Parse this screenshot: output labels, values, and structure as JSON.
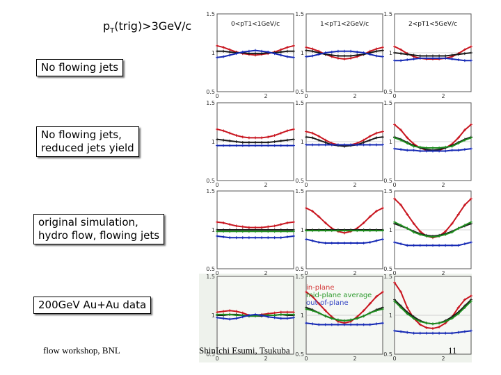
{
  "header": {
    "title_main": "p",
    "title_sub": "T",
    "title_rest": "(trig)>3GeV/c"
  },
  "colors": {
    "red": "#c8141e",
    "black": "#1a1a1a",
    "green": "#1e8c1e",
    "blue": "#1428b4"
  },
  "row_labels": [
    {
      "line1": "No flowing jets",
      "line2": ""
    },
    {
      "line1": "No flowing jets,",
      "line2": "reduced jets yield"
    },
    {
      "line1": "original simulation,",
      "line2": "hydro flow, flowing jets"
    },
    {
      "line1": "200GeV Au+Au data",
      "line2": ""
    }
  ],
  "legend": {
    "in_plane": "in-plane",
    "mid_plane": "mid-plane average",
    "out_plane": "out-of-plane"
  },
  "footer": {
    "left": "flow workshop, BNL",
    "center": "ShinIchi Esumi, Tsukuba",
    "page": "11"
  },
  "chart_data": {
    "type": "line",
    "columns": [
      "0<pT1<1GeV/c",
      "1<pT1<2GeV/c",
      "2<pT1<5GeV/c"
    ],
    "y_ticks": [
      "1.5",
      "1",
      "0.5"
    ],
    "x_ticks": [
      "0",
      "2"
    ],
    "xlim": [
      0,
      3.14
    ],
    "ylim": [
      0.5,
      1.5
    ],
    "x": [
      0,
      0.26,
      0.52,
      0.79,
      1.05,
      1.31,
      1.57,
      1.83,
      2.09,
      2.36,
      2.62,
      2.88,
      3.14
    ],
    "panels": [
      {
        "row": 0,
        "col": 0,
        "series": [
          {
            "color": "red",
            "values": [
              1.09,
              1.07,
              1.04,
              1.01,
              0.99,
              0.98,
              0.97,
              0.98,
              0.99,
              1.01,
              1.04,
              1.07,
              1.09
            ]
          },
          {
            "color": "black",
            "values": [
              1.02,
              1.02,
              1.01,
              1.0,
              1.0,
              0.99,
              0.99,
              0.99,
              1.0,
              1.0,
              1.01,
              1.02,
              1.02
            ]
          },
          {
            "color": "blue",
            "values": [
              0.94,
              0.95,
              0.97,
              0.99,
              1.01,
              1.02,
              1.03,
              1.02,
              1.01,
              0.99,
              0.97,
              0.95,
              0.94
            ]
          }
        ]
      },
      {
        "row": 0,
        "col": 1,
        "series": [
          {
            "color": "red",
            "values": [
              1.07,
              1.05,
              1.02,
              0.98,
              0.95,
              0.93,
              0.92,
              0.93,
              0.95,
              0.98,
              1.02,
              1.05,
              1.07
            ]
          },
          {
            "color": "black",
            "values": [
              1.03,
              1.02,
              1.0,
              0.98,
              0.97,
              0.96,
              0.96,
              0.96,
              0.97,
              0.98,
              1.0,
              1.02,
              1.03
            ]
          },
          {
            "color": "blue",
            "values": [
              0.95,
              0.96,
              0.98,
              1.0,
              1.01,
              1.02,
              1.02,
              1.02,
              1.01,
              1.0,
              0.98,
              0.96,
              0.95
            ]
          }
        ]
      },
      {
        "row": 0,
        "col": 2,
        "series": [
          {
            "color": "red",
            "values": [
              1.08,
              1.04,
              0.99,
              0.95,
              0.93,
              0.92,
              0.92,
              0.92,
              0.93,
              0.95,
              0.99,
              1.04,
              1.08
            ]
          },
          {
            "color": "black",
            "values": [
              1.0,
              0.99,
              0.98,
              0.97,
              0.96,
              0.96,
              0.96,
              0.96,
              0.96,
              0.97,
              0.98,
              0.99,
              1.0
            ]
          },
          {
            "color": "blue",
            "values": [
              0.9,
              0.9,
              0.91,
              0.92,
              0.93,
              0.93,
              0.93,
              0.93,
              0.93,
              0.92,
              0.91,
              0.9,
              0.9
            ]
          }
        ]
      },
      {
        "row": 1,
        "col": 0,
        "series": [
          {
            "color": "red",
            "values": [
              1.16,
              1.14,
              1.11,
              1.08,
              1.06,
              1.05,
              1.05,
              1.05,
              1.06,
              1.08,
              1.11,
              1.14,
              1.16
            ]
          },
          {
            "color": "black",
            "values": [
              1.03,
              1.02,
              1.01,
              1.0,
              0.99,
              0.99,
              0.99,
              0.99,
              0.99,
              1.0,
              1.01,
              1.02,
              1.03
            ]
          },
          {
            "color": "blue",
            "values": [
              0.95,
              0.95,
              0.95,
              0.95,
              0.95,
              0.95,
              0.95,
              0.95,
              0.95,
              0.95,
              0.95,
              0.95,
              0.95
            ]
          }
        ]
      },
      {
        "row": 1,
        "col": 1,
        "series": [
          {
            "color": "red",
            "values": [
              1.13,
              1.11,
              1.07,
              1.02,
              0.98,
              0.96,
              0.95,
              0.96,
              0.98,
              1.02,
              1.07,
              1.11,
              1.13
            ]
          },
          {
            "color": "black",
            "values": [
              1.06,
              1.05,
              1.02,
              0.99,
              0.96,
              0.95,
              0.94,
              0.95,
              0.96,
              0.99,
              1.02,
              1.05,
              1.06
            ]
          },
          {
            "color": "blue",
            "values": [
              0.96,
              0.96,
              0.96,
              0.96,
              0.96,
              0.96,
              0.96,
              0.96,
              0.96,
              0.96,
              0.96,
              0.96,
              0.96
            ]
          }
        ]
      },
      {
        "row": 1,
        "col": 2,
        "series": [
          {
            "color": "red",
            "values": [
              1.22,
              1.15,
              1.05,
              0.97,
              0.92,
              0.89,
              0.88,
              0.89,
              0.92,
              0.97,
              1.05,
              1.15,
              1.22
            ]
          },
          {
            "color": "black",
            "values": [
              1.06,
              1.03,
              0.99,
              0.95,
              0.92,
              0.9,
              0.89,
              0.9,
              0.92,
              0.95,
              0.99,
              1.03,
              1.06
            ]
          },
          {
            "color": "green",
            "values": [
              1.05,
              1.02,
              0.98,
              0.94,
              0.93,
              0.92,
              0.92,
              0.92,
              0.93,
              0.94,
              0.98,
              1.02,
              1.05
            ]
          },
          {
            "color": "blue",
            "values": [
              0.91,
              0.9,
              0.89,
              0.89,
              0.88,
              0.88,
              0.88,
              0.88,
              0.88,
              0.89,
              0.89,
              0.9,
              0.91
            ]
          }
        ]
      },
      {
        "row": 2,
        "col": 0,
        "series": [
          {
            "color": "red",
            "values": [
              1.1,
              1.09,
              1.07,
              1.05,
              1.04,
              1.03,
              1.03,
              1.03,
              1.04,
              1.05,
              1.07,
              1.09,
              1.1
            ]
          },
          {
            "color": "black",
            "values": [
              1.0,
              1.0,
              1.0,
              1.0,
              1.0,
              1.0,
              1.0,
              1.0,
              1.0,
              1.0,
              1.0,
              1.0,
              1.0
            ]
          },
          {
            "color": "green",
            "values": [
              0.98,
              0.98,
              0.98,
              0.98,
              0.98,
              0.98,
              0.98,
              0.98,
              0.98,
              0.98,
              0.98,
              0.98,
              0.98
            ]
          },
          {
            "color": "blue",
            "values": [
              0.92,
              0.91,
              0.9,
              0.9,
              0.9,
              0.9,
              0.9,
              0.9,
              0.9,
              0.9,
              0.9,
              0.91,
              0.92
            ]
          }
        ]
      },
      {
        "row": 2,
        "col": 1,
        "series": [
          {
            "color": "red",
            "values": [
              1.28,
              1.24,
              1.17,
              1.09,
              1.02,
              0.98,
              0.96,
              0.98,
              1.02,
              1.09,
              1.17,
              1.24,
              1.28
            ]
          },
          {
            "color": "black",
            "values": [
              1.0,
              1.0,
              1.0,
              1.0,
              1.0,
              1.0,
              1.0,
              1.0,
              1.0,
              1.0,
              1.0,
              1.0,
              1.0
            ]
          },
          {
            "color": "green",
            "values": [
              0.99,
              0.99,
              0.99,
              0.99,
              0.99,
              0.99,
              0.99,
              0.99,
              0.99,
              0.99,
              0.99,
              0.99,
              0.99
            ]
          },
          {
            "color": "blue",
            "values": [
              0.88,
              0.86,
              0.84,
              0.83,
              0.83,
              0.83,
              0.83,
              0.83,
              0.83,
              0.83,
              0.84,
              0.86,
              0.88
            ]
          }
        ]
      },
      {
        "row": 2,
        "col": 2,
        "series": [
          {
            "color": "red",
            "values": [
              1.4,
              1.32,
              1.2,
              1.08,
              0.98,
              0.92,
              0.9,
              0.92,
              0.98,
              1.08,
              1.2,
              1.32,
              1.4
            ]
          },
          {
            "color": "black",
            "values": [
              1.08,
              1.05,
              1.02,
              0.98,
              0.95,
              0.93,
              0.92,
              0.93,
              0.95,
              0.98,
              1.02,
              1.05,
              1.08
            ]
          },
          {
            "color": "green",
            "values": [
              1.1,
              1.06,
              1.02,
              0.97,
              0.94,
              0.92,
              0.91,
              0.92,
              0.94,
              0.97,
              1.02,
              1.06,
              1.1
            ]
          },
          {
            "color": "blue",
            "values": [
              0.84,
              0.82,
              0.8,
              0.8,
              0.8,
              0.8,
              0.8,
              0.8,
              0.8,
              0.8,
              0.8,
              0.82,
              0.84
            ]
          }
        ]
      },
      {
        "row": 3,
        "col": 0,
        "series": [
          {
            "color": "red",
            "values": [
              1.04,
              1.05,
              1.06,
              1.05,
              1.03,
              1.0,
              1.0,
              1.01,
              1.02,
              1.03,
              1.04,
              1.04,
              1.04
            ]
          },
          {
            "color": "black",
            "values": [
              1.0,
              1.0,
              1.01,
              1.01,
              1.0,
              0.99,
              0.99,
              0.99,
              1.0,
              1.0,
              1.01,
              1.0,
              1.0
            ]
          },
          {
            "color": "green",
            "values": [
              1.01,
              1.01,
              1.01,
              1.0,
              1.0,
              0.99,
              0.99,
              1.0,
              1.0,
              1.0,
              1.01,
              1.01,
              1.01
            ]
          },
          {
            "color": "blue",
            "values": [
              0.97,
              0.96,
              0.95,
              0.96,
              0.98,
              1.0,
              1.01,
              1.0,
              0.98,
              0.97,
              0.96,
              0.96,
              0.97
            ]
          }
        ]
      },
      {
        "row": 3,
        "col": 1,
        "series": [
          {
            "color": "red",
            "values": [
              1.3,
              1.24,
              1.15,
              1.06,
              0.98,
              0.92,
              0.9,
              0.92,
              0.98,
              1.06,
              1.15,
              1.24,
              1.3
            ]
          },
          {
            "color": "black",
            "values": [
              1.1,
              1.07,
              1.03,
              0.99,
              0.96,
              0.94,
              0.93,
              0.94,
              0.96,
              0.99,
              1.03,
              1.07,
              1.1
            ]
          },
          {
            "color": "green",
            "values": [
              1.08,
              1.06,
              1.03,
              0.99,
              0.96,
              0.94,
              0.93,
              0.94,
              0.96,
              0.99,
              1.03,
              1.06,
              1.08
            ]
          },
          {
            "color": "blue",
            "values": [
              0.9,
              0.89,
              0.88,
              0.88,
              0.88,
              0.88,
              0.88,
              0.88,
              0.88,
              0.88,
              0.88,
              0.89,
              0.9
            ]
          }
        ]
      },
      {
        "row": 3,
        "col": 2,
        "series": [
          {
            "color": "red",
            "values": [
              1.42,
              1.3,
              1.1,
              0.96,
              0.88,
              0.84,
              0.83,
              0.85,
              0.9,
              0.98,
              1.1,
              1.2,
              1.25
            ]
          },
          {
            "color": "black",
            "values": [
              1.2,
              1.12,
              1.04,
              0.98,
              0.93,
              0.9,
              0.89,
              0.9,
              0.93,
              0.98,
              1.04,
              1.12,
              1.2
            ]
          },
          {
            "color": "green",
            "values": [
              1.18,
              1.1,
              1.02,
              0.96,
              0.92,
              0.9,
              0.89,
              0.9,
              0.92,
              0.96,
              1.02,
              1.1,
              1.18
            ]
          },
          {
            "color": "blue",
            "values": [
              0.8,
              0.79,
              0.78,
              0.77,
              0.77,
              0.77,
              0.77,
              0.77,
              0.77,
              0.77,
              0.78,
              0.79,
              0.8
            ]
          }
        ]
      }
    ]
  }
}
